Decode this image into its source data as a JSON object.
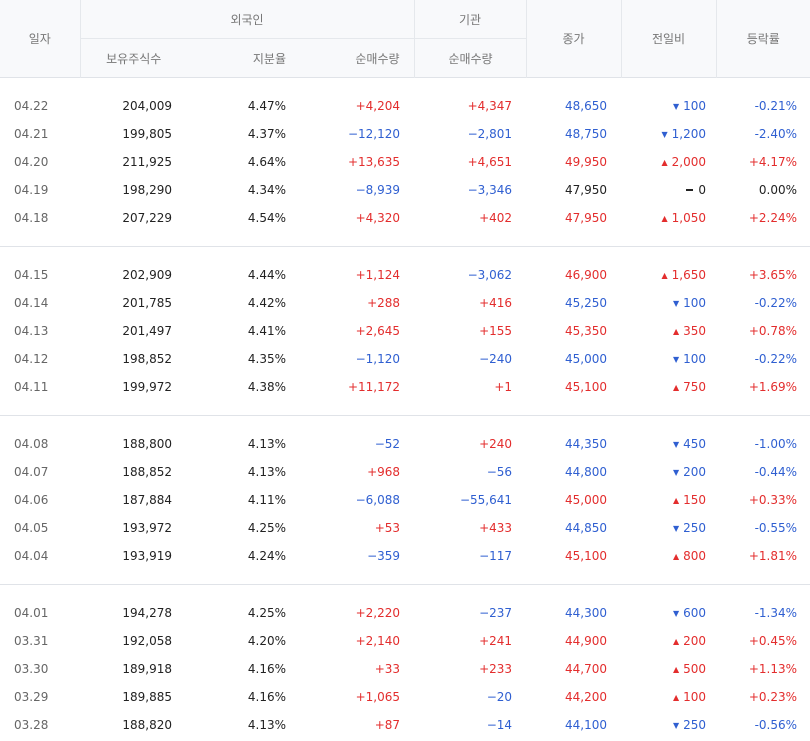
{
  "header": {
    "date": "일자",
    "foreign": "외국인",
    "institution": "기관",
    "close": "종가",
    "change": "전일비",
    "rate": "등락률",
    "holdings": "보유주식수",
    "ratio": "지분율",
    "foreign_net": "순매수량",
    "institution_net": "순매수량"
  },
  "colors": {
    "up": "#e32d2d",
    "down": "#2f5fd1",
    "flat": "#222222"
  },
  "groups": [
    [
      {
        "date": "04.22",
        "holdings": "204,009",
        "ratio": "4.47%",
        "foreign_net": "+4,204",
        "institution_net": "+4,347",
        "close": "48,650",
        "change": "100",
        "direction": "down",
        "rate": "-0.21%"
      },
      {
        "date": "04.21",
        "holdings": "199,805",
        "ratio": "4.37%",
        "foreign_net": "−12,120",
        "institution_net": "−2,801",
        "close": "48,750",
        "change": "1,200",
        "direction": "down",
        "rate": "-2.40%"
      },
      {
        "date": "04.20",
        "holdings": "211,925",
        "ratio": "4.64%",
        "foreign_net": "+13,635",
        "institution_net": "+4,651",
        "close": "49,950",
        "change": "2,000",
        "direction": "up",
        "rate": "+4.17%"
      },
      {
        "date": "04.19",
        "holdings": "198,290",
        "ratio": "4.34%",
        "foreign_net": "−8,939",
        "institution_net": "−3,346",
        "close": "47,950",
        "change": "0",
        "direction": "flat",
        "rate": "0.00%"
      },
      {
        "date": "04.18",
        "holdings": "207,229",
        "ratio": "4.54%",
        "foreign_net": "+4,320",
        "institution_net": "+402",
        "close": "47,950",
        "change": "1,050",
        "direction": "up",
        "rate": "+2.24%"
      }
    ],
    [
      {
        "date": "04.15",
        "holdings": "202,909",
        "ratio": "4.44%",
        "foreign_net": "+1,124",
        "institution_net": "−3,062",
        "close": "46,900",
        "change": "1,650",
        "direction": "up",
        "rate": "+3.65%"
      },
      {
        "date": "04.14",
        "holdings": "201,785",
        "ratio": "4.42%",
        "foreign_net": "+288",
        "institution_net": "+416",
        "close": "45,250",
        "change": "100",
        "direction": "down",
        "rate": "-0.22%"
      },
      {
        "date": "04.13",
        "holdings": "201,497",
        "ratio": "4.41%",
        "foreign_net": "+2,645",
        "institution_net": "+155",
        "close": "45,350",
        "change": "350",
        "direction": "up",
        "rate": "+0.78%"
      },
      {
        "date": "04.12",
        "holdings": "198,852",
        "ratio": "4.35%",
        "foreign_net": "−1,120",
        "institution_net": "−240",
        "close": "45,000",
        "change": "100",
        "direction": "down",
        "rate": "-0.22%"
      },
      {
        "date": "04.11",
        "holdings": "199,972",
        "ratio": "4.38%",
        "foreign_net": "+11,172",
        "institution_net": "+1",
        "close": "45,100",
        "change": "750",
        "direction": "up",
        "rate": "+1.69%"
      }
    ],
    [
      {
        "date": "04.08",
        "holdings": "188,800",
        "ratio": "4.13%",
        "foreign_net": "−52",
        "institution_net": "+240",
        "close": "44,350",
        "change": "450",
        "direction": "down",
        "rate": "-1.00%"
      },
      {
        "date": "04.07",
        "holdings": "188,852",
        "ratio": "4.13%",
        "foreign_net": "+968",
        "institution_net": "−56",
        "close": "44,800",
        "change": "200",
        "direction": "down",
        "rate": "-0.44%"
      },
      {
        "date": "04.06",
        "holdings": "187,884",
        "ratio": "4.11%",
        "foreign_net": "−6,088",
        "institution_net": "−55,641",
        "close": "45,000",
        "change": "150",
        "direction": "up",
        "rate": "+0.33%"
      },
      {
        "date": "04.05",
        "holdings": "193,972",
        "ratio": "4.25%",
        "foreign_net": "+53",
        "institution_net": "+433",
        "close": "44,850",
        "change": "250",
        "direction": "down",
        "rate": "-0.55%"
      },
      {
        "date": "04.04",
        "holdings": "193,919",
        "ratio": "4.24%",
        "foreign_net": "−359",
        "institution_net": "−117",
        "close": "45,100",
        "change": "800",
        "direction": "up",
        "rate": "+1.81%"
      }
    ],
    [
      {
        "date": "04.01",
        "holdings": "194,278",
        "ratio": "4.25%",
        "foreign_net": "+2,220",
        "institution_net": "−237",
        "close": "44,300",
        "change": "600",
        "direction": "down",
        "rate": "-1.34%"
      },
      {
        "date": "03.31",
        "holdings": "192,058",
        "ratio": "4.20%",
        "foreign_net": "+2,140",
        "institution_net": "+241",
        "close": "44,900",
        "change": "200",
        "direction": "up",
        "rate": "+0.45%"
      },
      {
        "date": "03.30",
        "holdings": "189,918",
        "ratio": "4.16%",
        "foreign_net": "+33",
        "institution_net": "+233",
        "close": "44,700",
        "change": "500",
        "direction": "up",
        "rate": "+1.13%"
      },
      {
        "date": "03.29",
        "holdings": "189,885",
        "ratio": "4.16%",
        "foreign_net": "+1,065",
        "institution_net": "−20",
        "close": "44,200",
        "change": "100",
        "direction": "up",
        "rate": "+0.23%"
      },
      {
        "date": "03.28",
        "holdings": "188,820",
        "ratio": "4.13%",
        "foreign_net": "+87",
        "institution_net": "−14",
        "close": "44,100",
        "change": "250",
        "direction": "down",
        "rate": "-0.56%"
      }
    ]
  ]
}
